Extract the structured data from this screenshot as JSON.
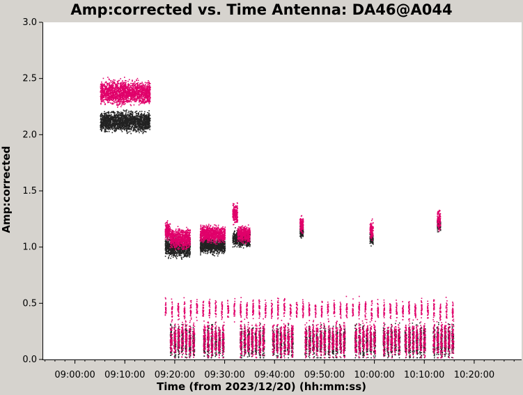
{
  "chart_data": {
    "type": "scatter",
    "title": "Amp:corrected vs. Time Antenna: DA46@A044",
    "xlabel": "Time (from 2023/12/20) (hh:mm:ss)",
    "ylabel": "Amp:corrected",
    "xlim": [
      "08:53:30",
      "10:29:30"
    ],
    "ylim": [
      0.0,
      3.0
    ],
    "x_ticks": [
      "09:00:00",
      "09:10:00",
      "09:20:00",
      "09:30:00",
      "09:40:00",
      "09:50:00",
      "10:00:00",
      "10:10:00",
      "10:20:00"
    ],
    "y_ticks": [
      "0.0",
      "0.5",
      "1.0",
      "1.5",
      "2.0",
      "2.5",
      "3.0"
    ],
    "grid": false,
    "series": [
      {
        "color": "#e0006a",
        "clusters": [
          {
            "t_start": "09:05:00",
            "t_end": "09:15:00",
            "amp_center": 2.38,
            "amp_spread": 0.14
          },
          {
            "t_start": "09:18:00",
            "t_end": "09:19:00",
            "amp_center": 1.15,
            "amp_spread": 0.12
          },
          {
            "t_start": "09:19:00",
            "t_end": "09:23:00",
            "amp_center": 1.08,
            "amp_spread": 0.12
          },
          {
            "t_start": "09:25:00",
            "t_end": "09:30:00",
            "amp_center": 1.12,
            "amp_spread": 0.1
          },
          {
            "t_start": "09:31:30",
            "t_end": "09:32:30",
            "amp_center": 1.3,
            "amp_spread": 0.12
          },
          {
            "t_start": "09:32:30",
            "t_end": "09:35:00",
            "amp_center": 1.12,
            "amp_spread": 0.1
          },
          {
            "t_start": "09:45:00",
            "t_end": "09:45:40",
            "amp_center": 1.2,
            "amp_spread": 0.1
          },
          {
            "t_start": "09:59:00",
            "t_end": "09:59:40",
            "amp_center": 1.15,
            "amp_spread": 0.12
          },
          {
            "t_start": "10:12:30",
            "t_end": "10:13:10",
            "amp_center": 1.25,
            "amp_spread": 0.12
          },
          {
            "t_start": "09:18:00",
            "t_end": "10:16:00",
            "amp_center": 0.45,
            "amp_spread": 0.12,
            "kind": "strips"
          },
          {
            "t_start": "09:19:00",
            "t_end": "10:15:30",
            "amp_center": 0.18,
            "amp_spread": 0.16,
            "kind": "dense"
          }
        ]
      },
      {
        "color": "#222222",
        "clusters": [
          {
            "t_start": "09:05:00",
            "t_end": "09:15:00",
            "amp_center": 2.12,
            "amp_spread": 0.12
          },
          {
            "t_start": "09:18:00",
            "t_end": "09:23:00",
            "amp_center": 1.0,
            "amp_spread": 0.12
          },
          {
            "t_start": "09:25:00",
            "t_end": "09:30:00",
            "amp_center": 1.02,
            "amp_spread": 0.1
          },
          {
            "t_start": "09:31:30",
            "t_end": "09:35:00",
            "amp_center": 1.08,
            "amp_spread": 0.1
          },
          {
            "t_start": "09:45:00",
            "t_end": "09:45:40",
            "amp_center": 1.15,
            "amp_spread": 0.08
          },
          {
            "t_start": "09:59:00",
            "t_end": "09:59:40",
            "amp_center": 1.08,
            "amp_spread": 0.08
          },
          {
            "t_start": "10:12:30",
            "t_end": "10:13:10",
            "amp_center": 1.2,
            "amp_spread": 0.08
          },
          {
            "t_start": "09:19:00",
            "t_end": "10:15:30",
            "amp_center": 0.16,
            "amp_spread": 0.15,
            "kind": "dense"
          }
        ]
      }
    ]
  }
}
